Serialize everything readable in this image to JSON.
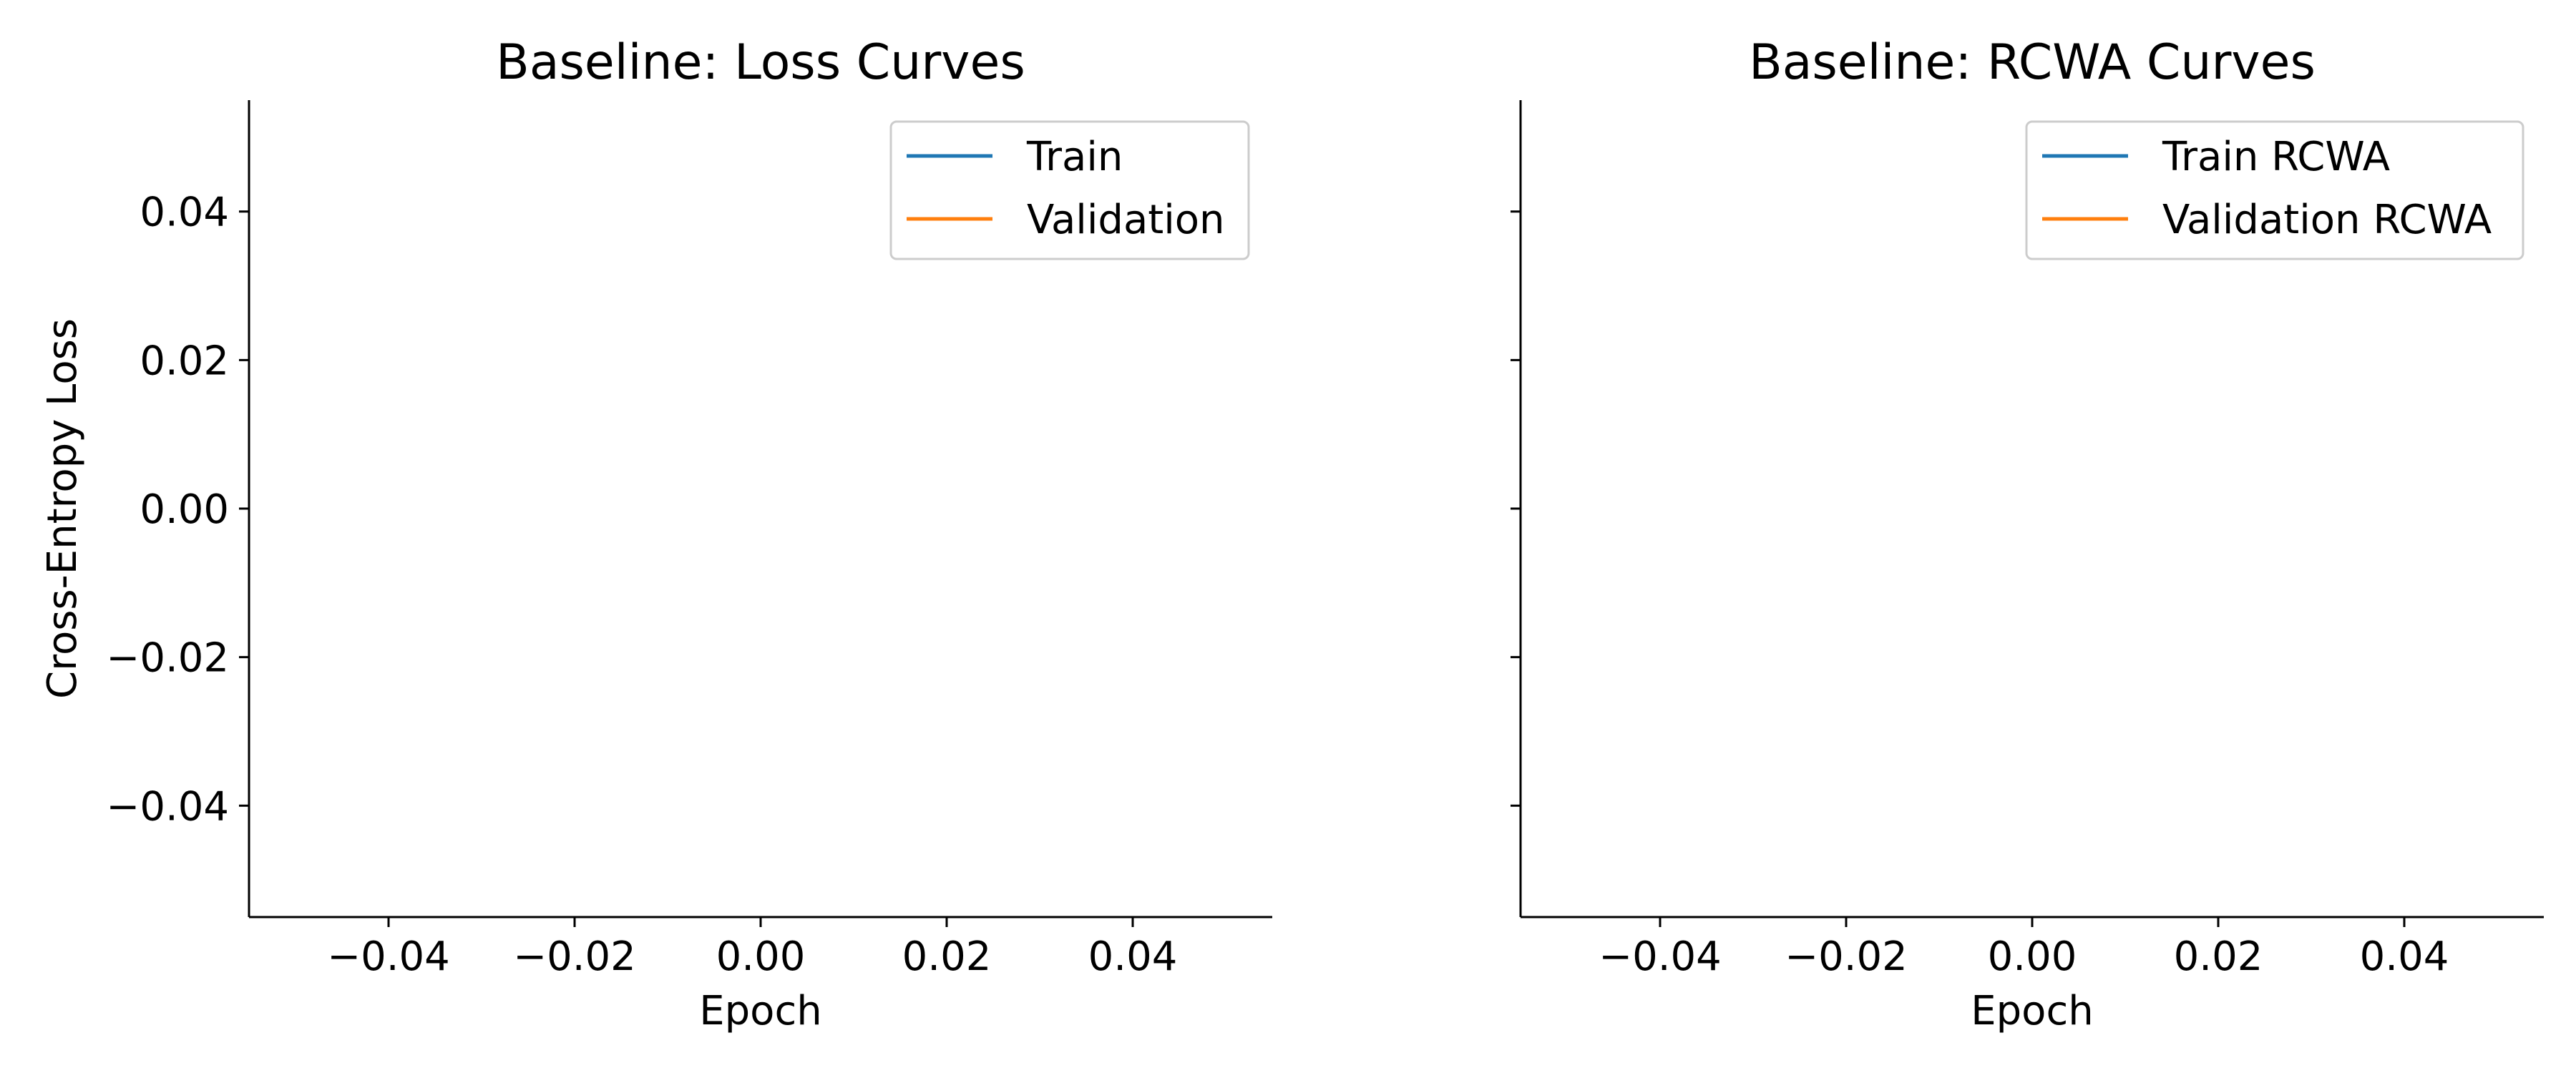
{
  "chart_data": [
    {
      "type": "line",
      "title": "Baseline: Loss Curves",
      "xlabel": "Epoch",
      "ylabel": "Cross-Entropy Loss",
      "xlim": [
        -0.055,
        0.055
      ],
      "ylim": [
        -0.055,
        0.055
      ],
      "xticks": [
        -0.04,
        -0.02,
        0.0,
        0.02,
        0.04
      ],
      "xtick_labels": [
        "−0.04",
        "−0.02",
        "0.00",
        "0.02",
        "0.04"
      ],
      "yticks": [
        -0.04,
        -0.02,
        0.0,
        0.02,
        0.04
      ],
      "ytick_labels": [
        "−0.04",
        "−0.02",
        "0.00",
        "0.02",
        "0.04"
      ],
      "show_ytick_labels": true,
      "grid": false,
      "legend_position": "top-right",
      "series": [
        {
          "name": "Train",
          "color": "#1f77b4",
          "x": [],
          "y": []
        },
        {
          "name": "Validation",
          "color": "#ff7f0e",
          "x": [],
          "y": []
        }
      ]
    },
    {
      "type": "line",
      "title": "Baseline: RCWA Curves",
      "xlabel": "Epoch",
      "ylabel": "",
      "xlim": [
        -0.055,
        0.055
      ],
      "ylim": [
        -0.055,
        0.055
      ],
      "xticks": [
        -0.04,
        -0.02,
        0.0,
        0.02,
        0.04
      ],
      "xtick_labels": [
        "−0.04",
        "−0.02",
        "0.00",
        "0.02",
        "0.04"
      ],
      "yticks": [
        -0.04,
        -0.02,
        0.0,
        0.02,
        0.04
      ],
      "ytick_labels": [],
      "show_ytick_labels": false,
      "grid": false,
      "legend_position": "top-right",
      "series": [
        {
          "name": "Train RCWA",
          "color": "#1f77b4",
          "x": [],
          "y": []
        },
        {
          "name": "Validation RCWA",
          "color": "#ff7f0e",
          "x": [],
          "y": []
        }
      ]
    }
  ]
}
